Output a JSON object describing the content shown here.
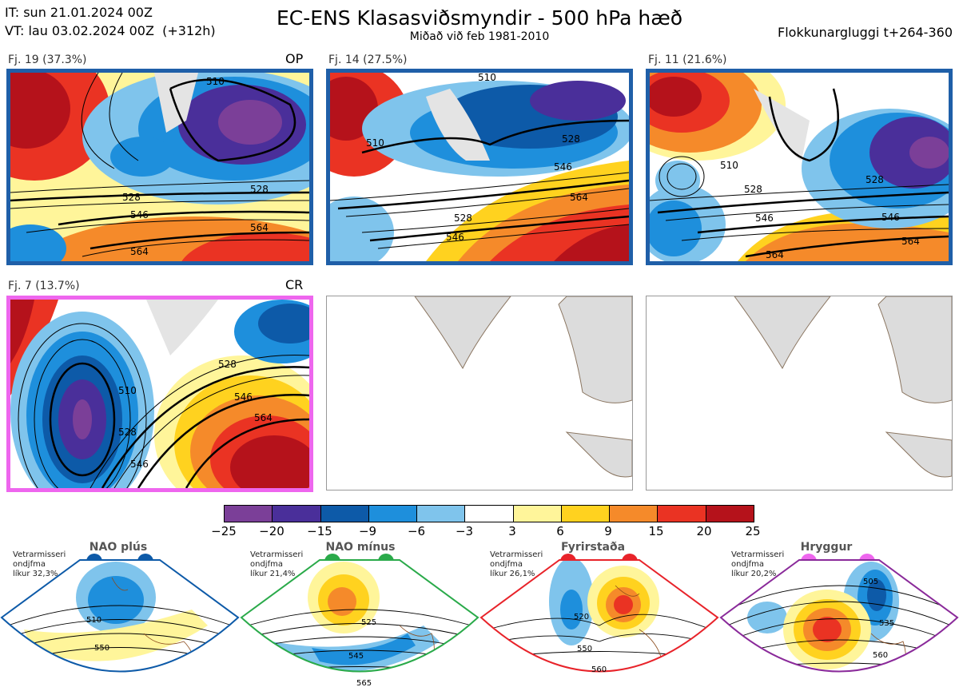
{
  "header": {
    "init_time": "IT: sun 21.01.2024 00Z",
    "valid_time": "VT: lau 03.02.2024 00Z  (+312h)",
    "title": "EC-ENS Klasasviðsmyndir - 500 hPa hæð",
    "subtitle": "Miðað við feb 1981-2010",
    "window": "Flokkunargluggi t+264-360"
  },
  "panels": [
    {
      "label": "Fj. 19 (37.3%)",
      "tag": "OP",
      "border": "#1f5fa8",
      "contours": [
        "528",
        "546",
        "564",
        "510",
        "528",
        "564"
      ]
    },
    {
      "label": "Fj. 14 (27.5%)",
      "tag": "",
      "border": "#1f5fa8",
      "contours": [
        "510",
        "528",
        "546",
        "564",
        "528",
        "546",
        "510"
      ]
    },
    {
      "label": "Fj. 11 (21.6%)",
      "tag": "",
      "border": "#1f5fa8",
      "contours": [
        "510",
        "528",
        "546",
        "564",
        "528",
        "546",
        "564"
      ]
    },
    {
      "label": "Fj. 7 (13.7%)",
      "tag": "CR",
      "border": "#ee66ee",
      "contours": [
        "510",
        "528",
        "546",
        "528",
        "546",
        "564"
      ]
    }
  ],
  "colorbar": {
    "labels": [
      "−25",
      "−20",
      "−15",
      "−9",
      "−6",
      "−3",
      "3",
      "6",
      "9",
      "15",
      "20",
      "25"
    ],
    "colors": [
      "#7b3f98",
      "#4a2f9a",
      "#0d5aa8",
      "#1e8fdc",
      "#7fc4ec",
      "#ffffff",
      "#fff59a",
      "#ffd21f",
      "#f58a2a",
      "#ea3323",
      "#b5121b"
    ]
  },
  "regimes": [
    {
      "title": "NAO plús",
      "text": "Vetrarmisseri\nondjfma\nlíkur 32,3%",
      "color": "#0d5aa8",
      "contours": [
        "510",
        "550"
      ]
    },
    {
      "title": "NAO mínus",
      "text": "Vetrarmisseri\nondjfma\nlíkur 21,4%",
      "color": "#2aaa4a",
      "contours": [
        "525",
        "545",
        "565"
      ]
    },
    {
      "title": "Fyrirstaða",
      "text": "Vetrarmisseri\nondjfma\nlíkur 26,1%",
      "color": "#e8232a",
      "contours": [
        "520",
        "550",
        "560"
      ]
    },
    {
      "title": "Hryggur",
      "text": "Vetrarmisseri\nondjfma\nlíkur 20,2%",
      "color": "#ee66ee",
      "contours": [
        "505",
        "535",
        "560"
      ]
    }
  ]
}
